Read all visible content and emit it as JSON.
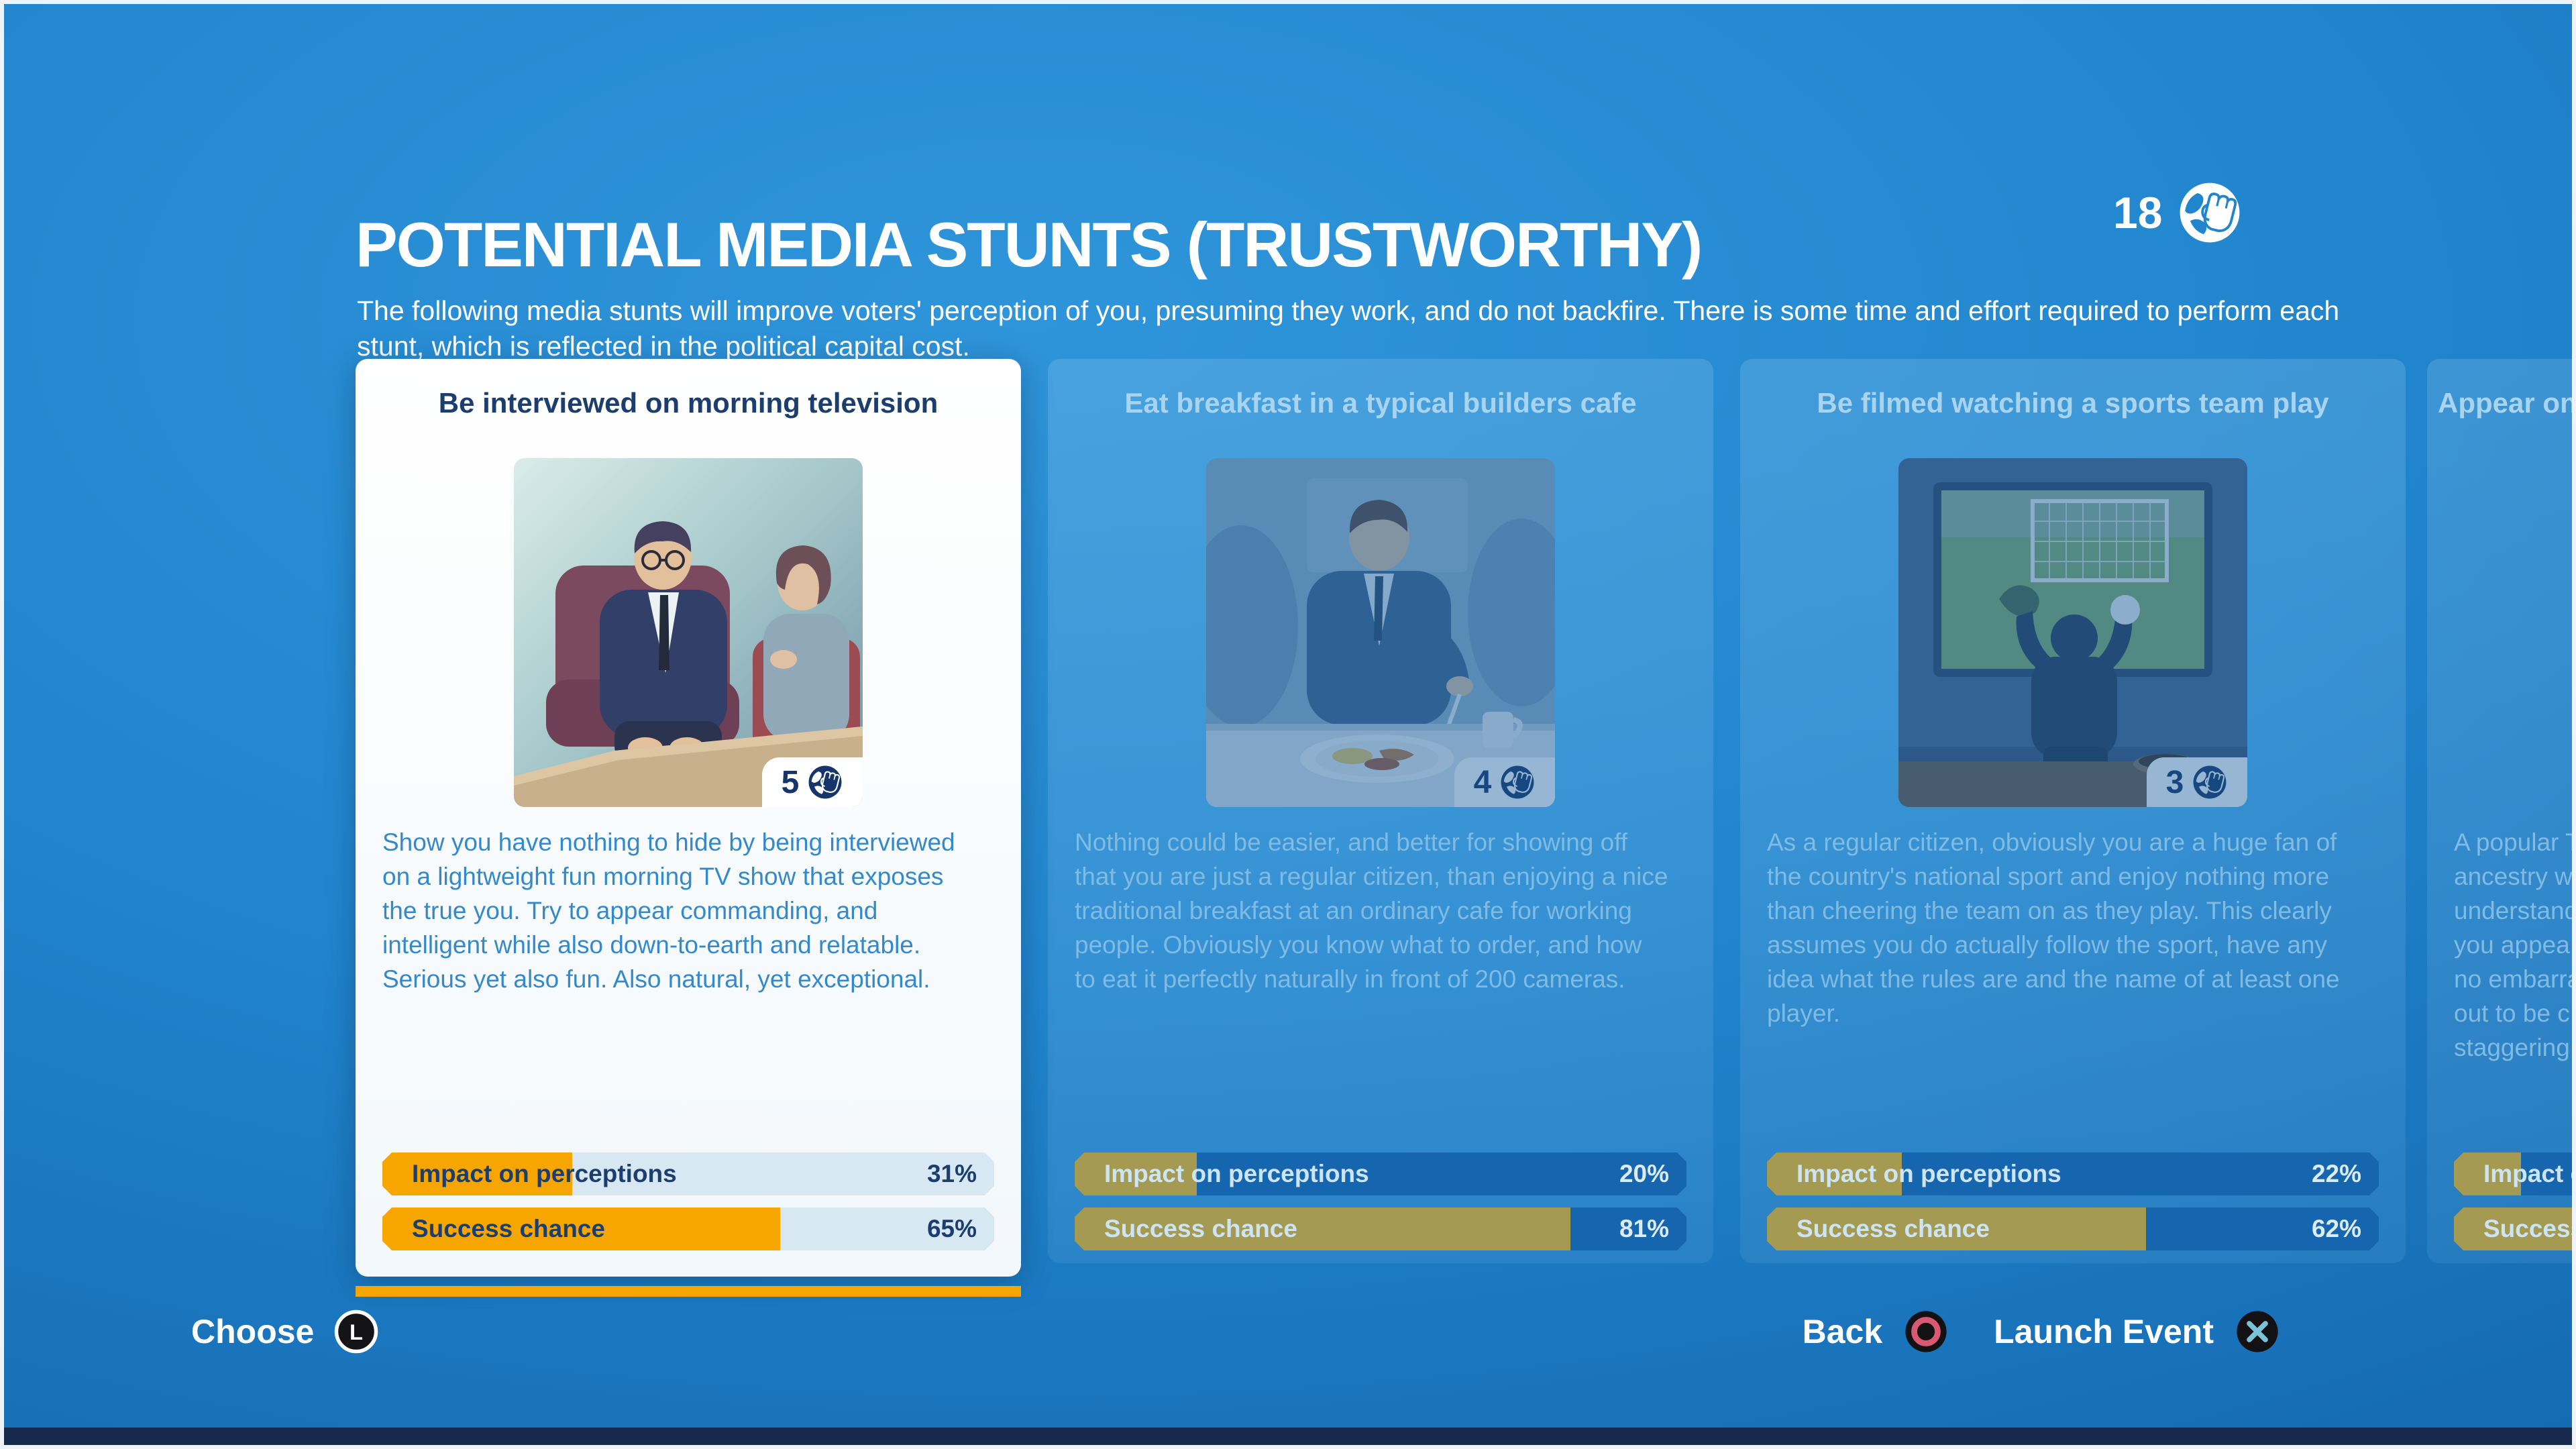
{
  "header": {
    "title": "POTENTIAL MEDIA STUNTS (TRUSTWORTHY)",
    "subtitle": "The following media stunts will improve voters' perception of you, presuming they work, and do not backfire. There is some time and effort required to perform each stunt, which is reflected in the political capital cost.",
    "political_capital": "18",
    "political_capital_icon": "fist-globe-icon"
  },
  "cards": [
    {
      "title": "Be interviewed on morning television",
      "cost": "5",
      "cost_icon": "fist-globe-icon",
      "image": "tv-interview-scene",
      "description": "Show you have nothing to hide by being interviewed on a lightweight fun morning TV show that exposes the true you. Try to appear commanding, and intelligent while also down-to-earth and relatable. Serious yet also fun. Also natural, yet exceptional.",
      "selected": true,
      "stats": [
        {
          "label": "Impact on perceptions",
          "value": "31%",
          "percent": 31
        },
        {
          "label": "Success chance",
          "value": "65%",
          "percent": 65
        }
      ]
    },
    {
      "title": "Eat breakfast in a typical builders cafe",
      "cost": "4",
      "cost_icon": "fist-globe-icon",
      "image": "cafe-breakfast-scene",
      "description": "Nothing could be easier, and better for showing off that you are just a regular citizen, than enjoying a nice traditional breakfast at an ordinary cafe for working people. Obviously you know what to order, and how to eat it perfectly naturally in front of 200 cameras.",
      "selected": false,
      "stats": [
        {
          "label": "Impact on perceptions",
          "value": "20%",
          "percent": 20
        },
        {
          "label": "Success chance",
          "value": "81%",
          "percent": 81
        }
      ]
    },
    {
      "title": "Be filmed watching a sports team play",
      "cost": "3",
      "cost_icon": "fist-globe-icon",
      "image": "sports-watching-scene",
      "description": "As a regular citizen, obviously you are a huge fan of the country's national sport and enjoy nothing more than cheering the team on as they play. This clearly assumes you do actually follow the sport, have any idea what the rules are and the name of at least one player.",
      "selected": false,
      "stats": [
        {
          "label": "Impact on perceptions",
          "value": "22%",
          "percent": 22
        },
        {
          "label": "Success chance",
          "value": "62%",
          "percent": 62
        }
      ]
    },
    {
      "title": "Appear on",
      "cost": null,
      "image": null,
      "description": "A popular T\nancestry w\nunderstand\nyou appea\nno embarra\nout to be c\nstaggering",
      "selected": false,
      "stats": [
        {
          "label": "Impact on perceptions",
          "value": null,
          "percent": 11
        },
        {
          "label": "Success chance",
          "value": null,
          "percent": 60
        }
      ]
    }
  ],
  "footer": {
    "choose_label": "Choose",
    "choose_button": "L",
    "back_label": "Back",
    "back_button": "circle",
    "launch_label": "Launch Event",
    "launch_button": "cross"
  },
  "colors": {
    "background_blue": "#1E7CC4",
    "accent_orange": "#F7A600",
    "khaki_fill_dimmed": "#A49A52",
    "bar_track_light": "#D8E8F3",
    "bar_track_dark": "#1565AF",
    "navy_text": "#1B3E6F",
    "card_selected_bg": "#FBFDFF",
    "footer_navy_bar": "#16294D",
    "ps_circle_red": "#D95872",
    "ps_cross_blue": "#79C2D8"
  }
}
